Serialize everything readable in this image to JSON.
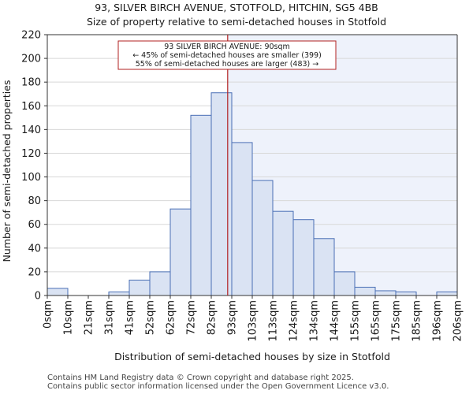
{
  "chart_data": {
    "type": "bar",
    "title_line1": "93, SILVER BIRCH AVENUE, STOTFOLD, HITCHIN, SG5 4BB",
    "title_line2": "Size of property relative to semi-detached houses in Stotfold",
    "xlabel": "Distribution of semi-detached houses by size in Stotfold",
    "ylabel": "Number of semi-detached properties",
    "ylim": [
      0,
      220
    ],
    "yticks": [
      0,
      20,
      40,
      60,
      80,
      100,
      120,
      140,
      160,
      180,
      200,
      220
    ],
    "xtick_labels": [
      "0sqm",
      "10sqm",
      "21sqm",
      "31sqm",
      "41sqm",
      "52sqm",
      "62sqm",
      "72sqm",
      "82sqm",
      "93sqm",
      "103sqm",
      "113sqm",
      "124sqm",
      "134sqm",
      "144sqm",
      "155sqm",
      "165sqm",
      "175sqm",
      "185sqm",
      "196sqm",
      "206sqm"
    ],
    "values": [
      6,
      0,
      0,
      3,
      13,
      20,
      73,
      152,
      171,
      129,
      97,
      71,
      64,
      48,
      20,
      7,
      4,
      3,
      0,
      3
    ],
    "marker": {
      "value_sqm": 90,
      "bin_position": 8.8,
      "line1": "93 SILVER BIRCH AVENUE: 90sqm",
      "line2": "← 45% of semi-detached houses are smaller (399)",
      "line3": "55% of semi-detached houses are larger (483) →"
    },
    "colors": {
      "bar_fill": "#dae3f3",
      "bar_stroke": "#4a6fb5",
      "highlight_bg": "#eef2fb",
      "marker": "#b22222",
      "grid": "#d8d8d8"
    }
  },
  "footer": {
    "line1": "Contains HM Land Registry data © Crown copyright and database right 2025.",
    "line2": "Contains public sector information licensed under the Open Government Licence v3.0."
  }
}
